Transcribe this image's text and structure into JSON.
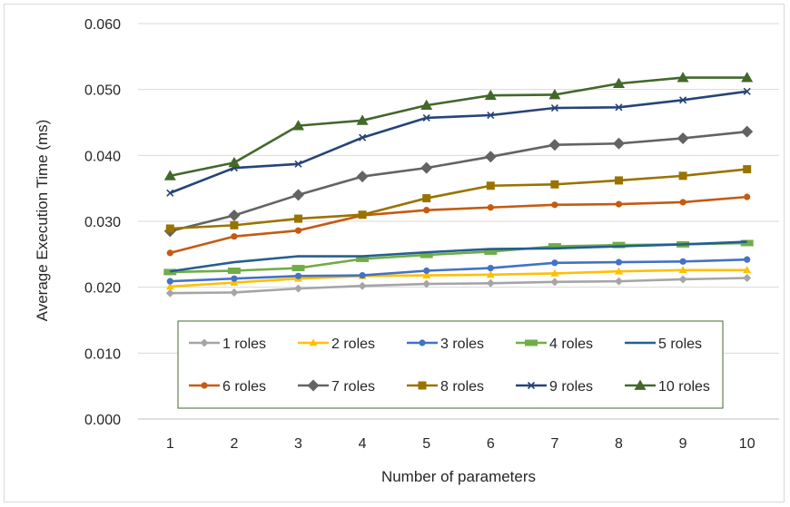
{
  "chart_data": {
    "type": "line",
    "xlabel": "Number of parameters",
    "ylabel": "Average Execution Time (ms)",
    "x": [
      1,
      2,
      3,
      4,
      5,
      6,
      7,
      8,
      9,
      10
    ],
    "ylim": [
      0,
      0.06
    ],
    "yticks": [
      "0.000",
      "0.010",
      "0.020",
      "0.030",
      "0.040",
      "0.050",
      "0.060"
    ],
    "grid": true,
    "legend_position": "bottom-inside",
    "series": [
      {
        "name": "1 roles",
        "color": "#a5a5a5",
        "marker": "diamond",
        "values": [
          0.0191,
          0.0192,
          0.0198,
          0.0202,
          0.0205,
          0.0206,
          0.0208,
          0.0209,
          0.0212,
          0.0214
        ]
      },
      {
        "name": "2 roles",
        "color": "#ffc000",
        "marker": "triangle",
        "values": [
          0.0201,
          0.0207,
          0.0213,
          0.0217,
          0.0218,
          0.0219,
          0.0221,
          0.0224,
          0.0226,
          0.0226
        ]
      },
      {
        "name": "3 roles",
        "color": "#4472c4",
        "marker": "circle",
        "values": [
          0.0209,
          0.0213,
          0.0217,
          0.0218,
          0.0225,
          0.0229,
          0.0237,
          0.0238,
          0.0239,
          0.0242
        ]
      },
      {
        "name": "4 roles",
        "color": "#70ad47",
        "marker": "dash",
        "values": [
          0.0223,
          0.0225,
          0.0229,
          0.0243,
          0.0249,
          0.0254,
          0.0262,
          0.0264,
          0.0265,
          0.0267
        ]
      },
      {
        "name": "5 roles",
        "color": "#255e91",
        "marker": "none",
        "values": [
          0.0224,
          0.0238,
          0.0247,
          0.0247,
          0.0253,
          0.0258,
          0.0259,
          0.0262,
          0.0265,
          0.0269
        ]
      },
      {
        "name": "6 roles",
        "color": "#c55a11",
        "marker": "circle",
        "values": [
          0.0252,
          0.0277,
          0.0286,
          0.0309,
          0.0317,
          0.0321,
          0.0325,
          0.0326,
          0.0329,
          0.0337
        ]
      },
      {
        "name": "7 roles",
        "color": "#636363",
        "marker": "diamond",
        "values": [
          0.0285,
          0.0309,
          0.034,
          0.0368,
          0.0381,
          0.0398,
          0.0416,
          0.0418,
          0.0426,
          0.0436
        ]
      },
      {
        "name": "8 roles",
        "color": "#997300",
        "marker": "square",
        "values": [
          0.0289,
          0.0294,
          0.0304,
          0.031,
          0.0335,
          0.0354,
          0.0356,
          0.0362,
          0.0369,
          0.0379
        ]
      },
      {
        "name": "9 roles",
        "color": "#264478",
        "marker": "x",
        "values": [
          0.0343,
          0.0381,
          0.0387,
          0.0427,
          0.0457,
          0.0461,
          0.0472,
          0.0473,
          0.0484,
          0.0497
        ]
      },
      {
        "name": "10 roles",
        "color": "#43682b",
        "marker": "triangle",
        "values": [
          0.0369,
          0.0389,
          0.0445,
          0.0453,
          0.0476,
          0.0491,
          0.0492,
          0.0509,
          0.0518,
          0.0518
        ]
      }
    ]
  }
}
